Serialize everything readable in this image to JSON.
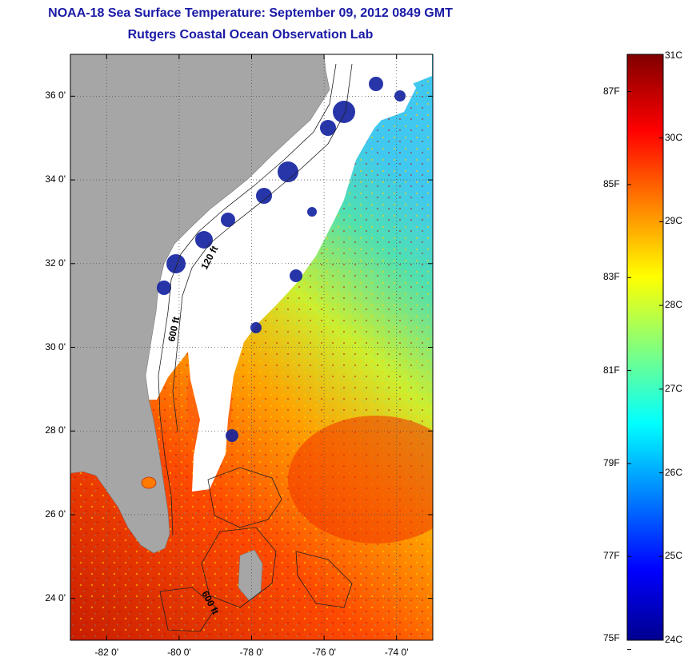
{
  "header": {
    "title": "NOAA-18 Sea Surface Temperature:  September 09, 2012 0849 GMT",
    "subtitle": "Rutgers Coastal Ocean Observation Lab"
  },
  "map": {
    "lon_range": [
      -83,
      -73
    ],
    "lat_range": [
      23,
      37
    ],
    "lon_ticks": [
      -82,
      -80,
      -78,
      -76,
      -74
    ],
    "lat_ticks": [
      24,
      26,
      28,
      30,
      32,
      34,
      36
    ],
    "lon_tick_labels": [
      "-82 0'",
      "-80 0'",
      "-78 0'",
      "-76 0'",
      "-74 0'"
    ],
    "lat_tick_labels": [
      "24 0'",
      "26 0'",
      "28 0'",
      "30 0'",
      "32 0'",
      "34 0'",
      "36 0'"
    ],
    "grid": "dotted",
    "contour_labels": [
      "120 ft",
      "600 ft",
      "600 ft"
    ],
    "colors": {
      "land": "#a6a6a6",
      "cloud": "#ffffff",
      "frame": "#000000"
    }
  },
  "colorbar": {
    "celsius_range": [
      24,
      31
    ],
    "celsius_labels": [
      "31C",
      "30C",
      "29C",
      "28C",
      "27C",
      "26C",
      "25C",
      "24C"
    ],
    "celsius_values": [
      31,
      30,
      29,
      28,
      27,
      26,
      25,
      24
    ],
    "fahrenheit_labels": [
      "87F",
      "85F",
      "83F",
      "81F",
      "79F",
      "77F",
      "75F"
    ],
    "fahrenheit_values": [
      87,
      85,
      83,
      81,
      79,
      77,
      75
    ],
    "colormap": "jet"
  }
}
